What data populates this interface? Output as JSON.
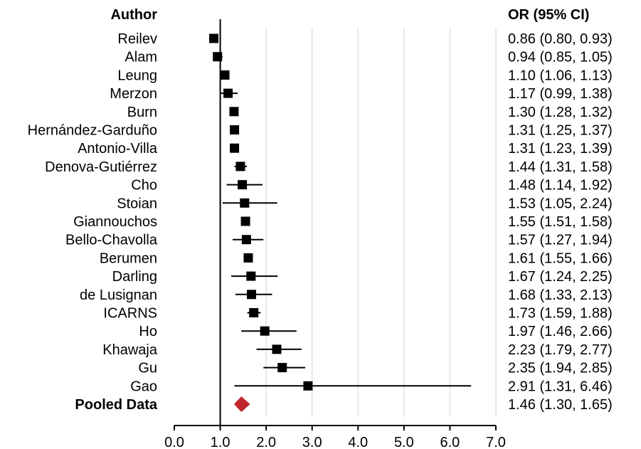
{
  "chart_data": {
    "type": "forest",
    "headers": {
      "author": "Author",
      "or": "OR (95% CI)"
    },
    "xlim": [
      0,
      7
    ],
    "x_ticks": [
      0,
      1,
      2,
      3,
      4,
      5,
      6,
      7
    ],
    "x_tick_labels": [
      "0.0",
      "1.0",
      "2.0",
      "3.0",
      "4.0",
      "5.0",
      "6.0",
      "7.0"
    ],
    "reference_line": 1,
    "grid": true,
    "studies": [
      {
        "author": "Reilev",
        "or": 0.86,
        "lower": 0.8,
        "upper": 0.93,
        "label": "0.86 (0.80, 0.93)"
      },
      {
        "author": "Alam",
        "or": 0.94,
        "lower": 0.85,
        "upper": 1.05,
        "label": "0.94 (0.85, 1.05)"
      },
      {
        "author": "Leung",
        "or": 1.1,
        "lower": 1.06,
        "upper": 1.13,
        "label": "1.10 (1.06, 1.13)"
      },
      {
        "author": "Merzon",
        "or": 1.17,
        "lower": 0.99,
        "upper": 1.38,
        "label": "1.17 (0.99, 1.38)"
      },
      {
        "author": "Burn",
        "or": 1.3,
        "lower": 1.28,
        "upper": 1.32,
        "label": "1.30 (1.28, 1.32)"
      },
      {
        "author": "Hernández-Garduño",
        "or": 1.31,
        "lower": 1.25,
        "upper": 1.37,
        "label": "1.31 (1.25, 1.37)"
      },
      {
        "author": "Antonio-Villa",
        "or": 1.31,
        "lower": 1.23,
        "upper": 1.39,
        "label": "1.31 (1.23, 1.39)"
      },
      {
        "author": "Denova-Gutiérrez",
        "or": 1.44,
        "lower": 1.31,
        "upper": 1.58,
        "label": "1.44 (1.31, 1.58)"
      },
      {
        "author": "Cho",
        "or": 1.48,
        "lower": 1.14,
        "upper": 1.92,
        "label": "1.48 (1.14, 1.92)"
      },
      {
        "author": "Stoian",
        "or": 1.53,
        "lower": 1.05,
        "upper": 2.24,
        "label": "1.53 (1.05, 2.24)"
      },
      {
        "author": "Giannouchos",
        "or": 1.55,
        "lower": 1.51,
        "upper": 1.58,
        "label": "1.55 (1.51, 1.58)"
      },
      {
        "author": "Bello-Chavolla",
        "or": 1.57,
        "lower": 1.27,
        "upper": 1.94,
        "label": "1.57 (1.27, 1.94)"
      },
      {
        "author": "Berumen",
        "or": 1.61,
        "lower": 1.55,
        "upper": 1.66,
        "label": "1.61 (1.55, 1.66)"
      },
      {
        "author": "Darling",
        "or": 1.67,
        "lower": 1.24,
        "upper": 2.25,
        "label": "1.67 (1.24, 2.25)"
      },
      {
        "author": "de Lusignan",
        "or": 1.68,
        "lower": 1.33,
        "upper": 2.13,
        "label": "1.68 (1.33, 2.13)"
      },
      {
        "author": "ICARNS",
        "or": 1.73,
        "lower": 1.59,
        "upper": 1.88,
        "label": "1.73 (1.59, 1.88)"
      },
      {
        "author": "Ho",
        "or": 1.97,
        "lower": 1.46,
        "upper": 2.66,
        "label": "1.97 (1.46, 2.66)"
      },
      {
        "author": "Khawaja",
        "or": 2.23,
        "lower": 1.79,
        "upper": 2.77,
        "label": "2.23 (1.79, 2.77)"
      },
      {
        "author": "Gu",
        "or": 2.35,
        "lower": 1.94,
        "upper": 2.85,
        "label": "2.35 (1.94, 2.85)"
      },
      {
        "author": "Gao",
        "or": 2.91,
        "lower": 1.31,
        "upper": 6.46,
        "label": "2.91 (1.31, 6.46)"
      }
    ],
    "pooled": {
      "author": "Pooled Data",
      "or": 1.46,
      "lower": 1.3,
      "upper": 1.65,
      "label": "1.46 (1.30, 1.65)"
    },
    "colors": {
      "point": "#000000",
      "pooled": "#c0272d",
      "grid": "#e6e6e6",
      "axis": "#000000"
    }
  }
}
